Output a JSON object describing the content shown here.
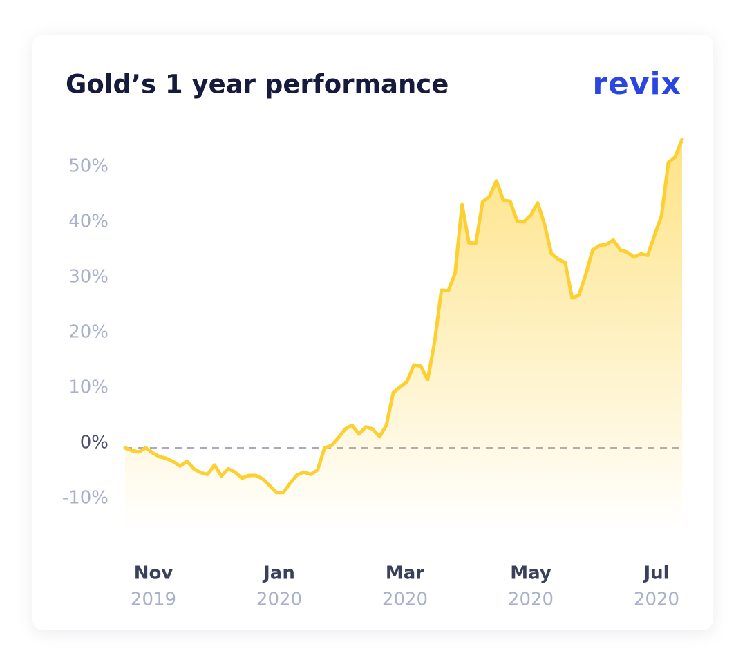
{
  "brand": "revix",
  "chart_data": {
    "type": "line",
    "title": "Gold’s 1 year performance",
    "color": "#fdd032",
    "values": [
      0,
      -0.5,
      -0.75,
      0,
      -0.9,
      -1.6,
      -1.9,
      -2.5,
      -3.3,
      -2.4,
      -3.8,
      -4.5,
      -4.8,
      -3.1,
      -5.1,
      -3.8,
      -4.4,
      -5.5,
      -5,
      -5,
      -5.6,
      -6.8,
      -8.1,
      -8.1,
      -6.4,
      -4.9,
      -4.4,
      -4.8,
      -4,
      0,
      0.4,
      1.8,
      3.4,
      4.1,
      2.5,
      3.8,
      3.4,
      2,
      4.1,
      10,
      11,
      12,
      15,
      14.8,
      12.3,
      19.1,
      28.5,
      28.4,
      31.6,
      44,
      37.1,
      37,
      44.5,
      45.5,
      48.3,
      44.8,
      44.6,
      41,
      40.9,
      42.1,
      44.3,
      40.4,
      35.1,
      34.1,
      33.5,
      27.1,
      27.6,
      31.4,
      35.8,
      36.6,
      36.8,
      37.6,
      35.8,
      35.4,
      34.5,
      35.1,
      34.8,
      38.5,
      41.9,
      51.6,
      52.6,
      55.8
    ],
    "ylim": [
      -15,
      56
    ],
    "yticks": [
      {
        "value": 50,
        "label": "50%"
      },
      {
        "value": 40,
        "label": "40%"
      },
      {
        "value": 30,
        "label": "30%"
      },
      {
        "value": 20,
        "label": "20%"
      },
      {
        "value": 10,
        "label": "10%"
      },
      {
        "value": 0,
        "label": "0%"
      },
      {
        "value": -10,
        "label": "-10%"
      }
    ],
    "zero_line": true,
    "x_labels": [
      {
        "month": "Nov",
        "year": "2019"
      },
      {
        "month": "Jan",
        "year": "2020"
      },
      {
        "month": "Mar",
        "year": "2020"
      },
      {
        "month": "May",
        "year": "2020"
      },
      {
        "month": "Jul",
        "year": "2020"
      }
    ]
  }
}
